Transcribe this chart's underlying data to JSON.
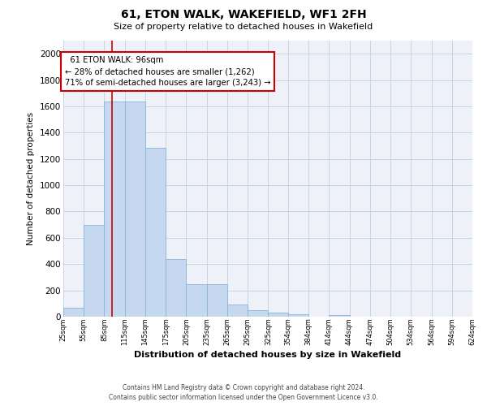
{
  "title": "61, ETON WALK, WAKEFIELD, WF1 2FH",
  "subtitle": "Size of property relative to detached houses in Wakefield",
  "xlabel": "Distribution of detached houses by size in Wakefield",
  "ylabel": "Number of detached properties",
  "footer_line1": "Contains HM Land Registry data © Crown copyright and database right 2024.",
  "footer_line2": "Contains public sector information licensed under the Open Government Licence v3.0.",
  "annotation_line1": "61 ETON WALK: 96sqm",
  "annotation_line2": "← 28% of detached houses are smaller (1,262)",
  "annotation_line3": "71% of semi-detached houses are larger (3,243) →",
  "bar_color": "#c5d8f0",
  "bar_edge_color": "#8ab4d8",
  "vline_color": "#cc0000",
  "vline_x": 96,
  "ylim": [
    0,
    2100
  ],
  "yticks": [
    0,
    200,
    400,
    600,
    800,
    1000,
    1200,
    1400,
    1600,
    1800,
    2000
  ],
  "bin_edges": [
    25,
    55,
    85,
    115,
    145,
    175,
    205,
    235,
    265,
    295,
    325,
    354,
    384,
    414,
    444,
    474,
    504,
    534,
    564,
    594,
    624
  ],
  "bar_heights": [
    65,
    695,
    1635,
    1635,
    1285,
    440,
    250,
    250,
    90,
    50,
    30,
    20,
    0,
    15,
    0,
    0,
    0,
    0,
    0,
    0
  ],
  "grid_color": "#c8d4e4",
  "background_color": "#eef2f8",
  "annotation_box_edge": "#cc0000",
  "fig_width": 6.0,
  "fig_height": 5.0,
  "dpi": 100
}
